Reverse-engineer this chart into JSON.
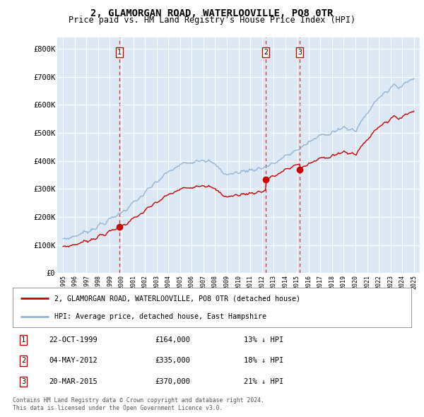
{
  "title": "2, GLAMORGAN ROAD, WATERLOOVILLE, PO8 0TR",
  "subtitle": "Price paid vs. HM Land Registry's House Price Index (HPI)",
  "title_fontsize": 10,
  "subtitle_fontsize": 8.5,
  "ylim": [
    0,
    840000
  ],
  "yticks": [
    0,
    100000,
    200000,
    300000,
    400000,
    500000,
    600000,
    700000,
    800000
  ],
  "ytick_labels": [
    "£0",
    "£100K",
    "£200K",
    "£300K",
    "£400K",
    "£500K",
    "£600K",
    "£700K",
    "£800K"
  ],
  "hpi_color": "#92b4d4",
  "price_color": "#cc0000",
  "vline_color": "#cc0000",
  "chart_bg_color": "#dce9f5",
  "background_color": "#ffffff",
  "grid_color": "#ffffff",
  "transactions": [
    {
      "id": 1,
      "date_dec": 1999.81,
      "price": 164000,
      "label": "1"
    },
    {
      "id": 2,
      "date_dec": 2012.34,
      "price": 335000,
      "label": "2"
    },
    {
      "id": 3,
      "date_dec": 2015.22,
      "price": 370000,
      "label": "3"
    }
  ],
  "transaction_table": [
    {
      "num": "1",
      "date": "22-OCT-1999",
      "price": "£164,000",
      "pct": "13% ↓ HPI"
    },
    {
      "num": "2",
      "date": "04-MAY-2012",
      "price": "£335,000",
      "pct": "18% ↓ HPI"
    },
    {
      "num": "3",
      "date": "20-MAR-2015",
      "price": "£370,000",
      "pct": "21% ↓ HPI"
    }
  ],
  "legend_line1": "2, GLAMORGAN ROAD, WATERLOOVILLE, PO8 0TR (detached house)",
  "legend_line2": "HPI: Average price, detached house, East Hampshire",
  "footer1": "Contains HM Land Registry data © Crown copyright and database right 2024.",
  "footer2": "This data is licensed under the Open Government Licence v3.0.",
  "xtick_years": [
    1995,
    1996,
    1997,
    1998,
    1999,
    2000,
    2001,
    2002,
    2003,
    2004,
    2005,
    2006,
    2007,
    2008,
    2009,
    2010,
    2011,
    2012,
    2013,
    2014,
    2015,
    2016,
    2017,
    2018,
    2019,
    2020,
    2021,
    2022,
    2023,
    2024,
    2025
  ]
}
